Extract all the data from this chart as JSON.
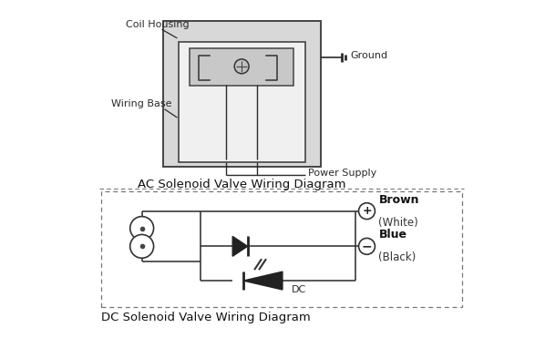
{
  "bg_color": "#ffffff",
  "line_color": "#2a2a2a",
  "gray_fill": "#cccccc",
  "light_gray": "#e0e0e0",
  "title_ac": "AC Solenoid Valve Wiring Diagram",
  "title_dc": "DC Solenoid Valve Wiring Diagram",
  "label_coil_housing": "Coil Housing",
  "label_wiring_base": "Wiring Base",
  "label_ground": "Ground",
  "label_power_supply": "Power Supply",
  "label_brown": "Brown",
  "label_white": "(White)",
  "label_blue": "Blue",
  "label_black": "(Black)",
  "label_dc": "DC",
  "font_size_title": 9.5,
  "font_size_label": 8,
  "font_size_wire_label": 8.5
}
